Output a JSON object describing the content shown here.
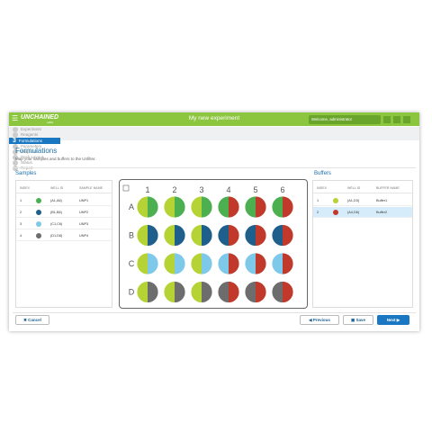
{
  "app": {
    "logo": "UNCHAINED",
    "logo_sub": "LABS",
    "title": "My new experiment",
    "user": "Welcome, administrator"
  },
  "steps": [
    {
      "label": "Experiment"
    },
    {
      "label": "Reagents"
    },
    {
      "number": "3",
      "label": "Formulations",
      "active": true
    },
    {
      "label": "Parameters"
    },
    {
      "label": "Prep List"
    },
    {
      "label": "Deck Layout"
    },
    {
      "label": "Status"
    },
    {
      "label": "Report"
    }
  ],
  "page": {
    "title": "Formulations",
    "subtitle": "Map your samples and buffers to the Unfilter."
  },
  "samples": {
    "title": "Samples",
    "headers": [
      "INDEX",
      "WELL ID",
      "SAMPLE NAME"
    ],
    "rows": [
      {
        "index": "1",
        "color": "#4caf50",
        "well": "(A1,A6)",
        "name": "UNP1"
      },
      {
        "index": "2",
        "color": "#1f5f8b",
        "well": "(B1,B6)",
        "name": "UNP2"
      },
      {
        "index": "3",
        "color": "#7ec8ea",
        "well": "(C1,C6)",
        "name": "UNP3"
      },
      {
        "index": "4",
        "color": "#6d6d6d",
        "well": "(D1,D6)",
        "name": "UNP4"
      }
    ]
  },
  "plate": {
    "columns": [
      "1",
      "2",
      "3",
      "4",
      "5",
      "6"
    ],
    "rows": [
      "A",
      "B",
      "C",
      "D"
    ]
  },
  "buffers": {
    "title": "Buffers",
    "headers": [
      "INDEX",
      "WELL ID",
      "BUFFER NAME"
    ],
    "rows": [
      {
        "index": "1",
        "color": "#b5d334",
        "well": "(A1,D3)",
        "name": "Buffer1"
      },
      {
        "index": "2",
        "color": "#c0392b",
        "well": "(A4,D6)",
        "name": "Buffer2",
        "selected": true
      }
    ]
  },
  "buttons": {
    "cancel": "Cancel",
    "previous": "Previous",
    "save": "Save",
    "next": "Next"
  }
}
